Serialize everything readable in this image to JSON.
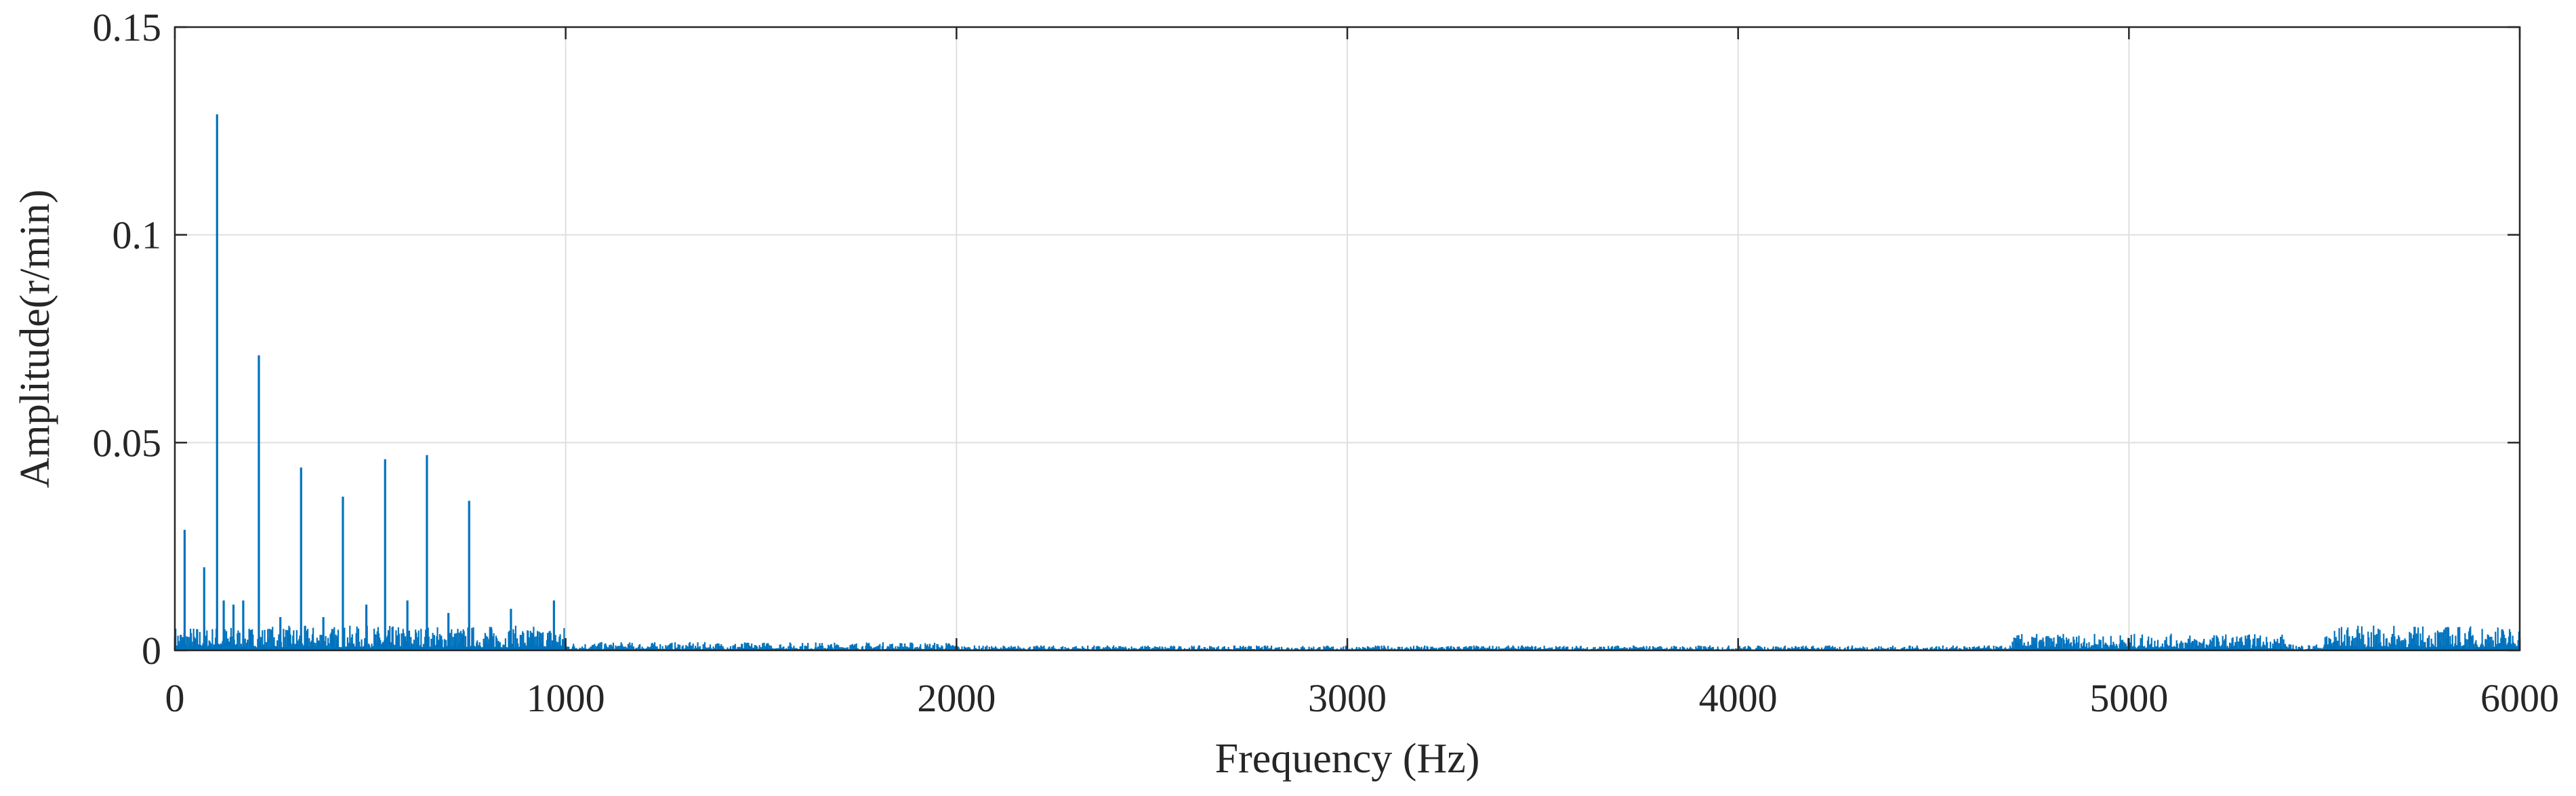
{
  "chart_data": {
    "type": "line",
    "xlabel": "Frequency (Hz)",
    "ylabel": "Amplitude(r/min)",
    "xlim": [
      0,
      6000
    ],
    "ylim": [
      0,
      0.15
    ],
    "xticks": [
      0,
      1000,
      2000,
      3000,
      4000,
      5000,
      6000
    ],
    "xtick_labels": [
      "0",
      "1000",
      "2000",
      "3000",
      "4000",
      "5000",
      "6000"
    ],
    "yticks": [
      0,
      0.05,
      0.1,
      0.15
    ],
    "ytick_labels": [
      "0",
      "0.05",
      "0.1",
      "0.15"
    ],
    "grid": true,
    "line_color": "#0072BD",
    "peaks": [
      {
        "x": 25,
        "y": 0.029
      },
      {
        "x": 75,
        "y": 0.02
      },
      {
        "x": 108,
        "y": 0.129
      },
      {
        "x": 125,
        "y": 0.012
      },
      {
        "x": 150,
        "y": 0.011
      },
      {
        "x": 175,
        "y": 0.012
      },
      {
        "x": 215,
        "y": 0.071
      },
      {
        "x": 270,
        "y": 0.008
      },
      {
        "x": 323,
        "y": 0.044
      },
      {
        "x": 380,
        "y": 0.008
      },
      {
        "x": 430,
        "y": 0.037
      },
      {
        "x": 490,
        "y": 0.011
      },
      {
        "x": 538,
        "y": 0.046
      },
      {
        "x": 595,
        "y": 0.012
      },
      {
        "x": 645,
        "y": 0.047
      },
      {
        "x": 700,
        "y": 0.009
      },
      {
        "x": 753,
        "y": 0.036
      },
      {
        "x": 810,
        "y": 0.005
      },
      {
        "x": 860,
        "y": 0.01
      },
      {
        "x": 970,
        "y": 0.012
      }
    ],
    "noise_segments": [
      {
        "x": [
          0,
          1000
        ],
        "max_amplitude": 0.006
      },
      {
        "x": [
          1000,
          2000
        ],
        "max_amplitude": 0.002
      },
      {
        "x": [
          2000,
          4700
        ],
        "max_amplitude": 0.0012
      },
      {
        "x": [
          4700,
          5400
        ],
        "max_amplitude": 0.004
      },
      {
        "x": [
          5400,
          5500
        ],
        "max_amplitude": 0.0015
      },
      {
        "x": [
          5500,
          6000
        ],
        "max_amplitude": 0.006
      }
    ]
  }
}
